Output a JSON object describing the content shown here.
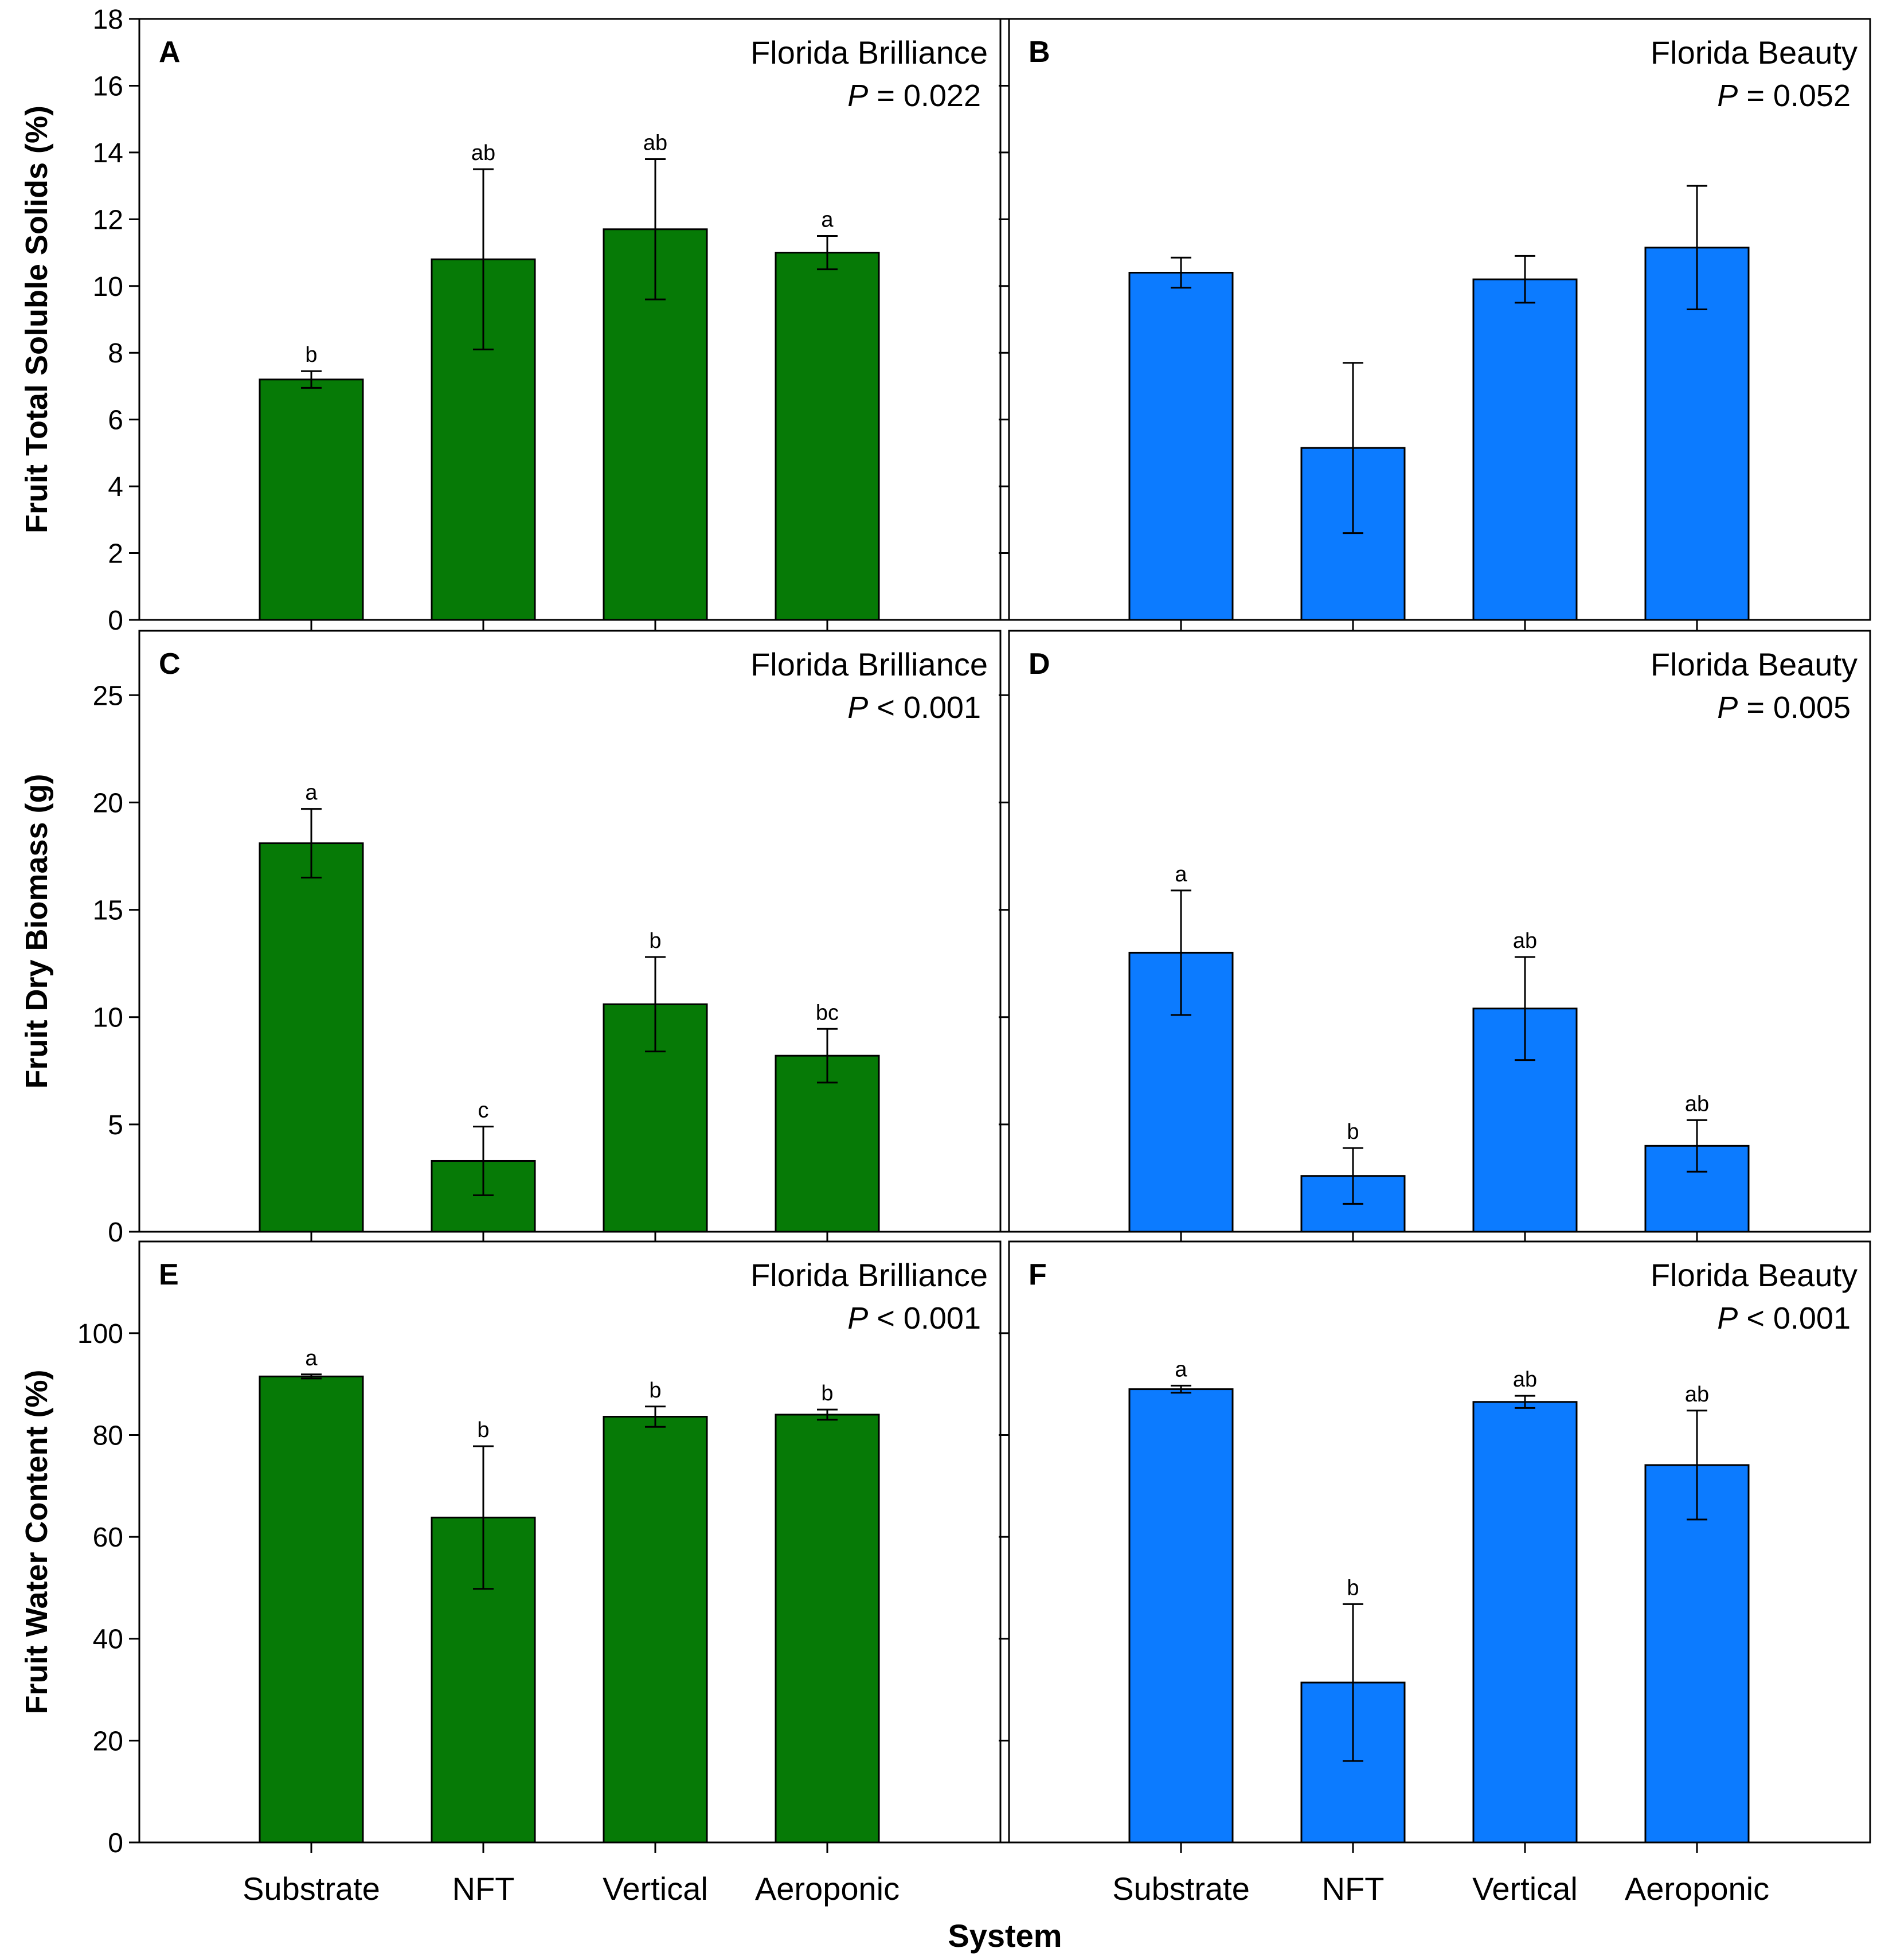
{
  "x_axis_label": "System",
  "chart_data": [
    {
      "type": "bar",
      "panel": "A",
      "cultivar": "Florida Brilliance",
      "p_prefix": "P",
      "p_text": " = 0.022",
      "ylabel": "Fruit Total Soluble Solids (%)",
      "categories": [
        "Substrate",
        "NFT",
        "Vertical",
        "Aeroponic"
      ],
      "values": [
        7.2,
        10.8,
        11.7,
        11.0
      ],
      "errors": [
        0.25,
        2.7,
        2.1,
        0.5
      ],
      "letters": [
        "b",
        "ab",
        "ab",
        "a"
      ],
      "ylim": [
        0,
        18
      ],
      "yticks": [
        0,
        2,
        4,
        6,
        8,
        10,
        12,
        14,
        16,
        18
      ],
      "color": "#067a06"
    },
    {
      "type": "bar",
      "panel": "B",
      "cultivar": "Florida Beauty",
      "p_prefix": "P",
      "p_text": " = 0.052",
      "categories": [
        "Substrate",
        "NFT",
        "Vertical",
        "Aeroponic"
      ],
      "values": [
        10.4,
        5.15,
        10.2,
        11.15
      ],
      "errors": [
        0.45,
        2.55,
        0.7,
        1.85
      ],
      "letters": [
        "",
        "",
        "",
        ""
      ],
      "ylim": [
        0,
        18
      ],
      "yticks": [
        0,
        2,
        4,
        6,
        8,
        10,
        12,
        14,
        16,
        18
      ],
      "color": "#0c7bff"
    },
    {
      "type": "bar",
      "panel": "C",
      "cultivar": "Florida Brilliance",
      "p_prefix": "P",
      "p_text": " < 0.001",
      "ylabel": "Fruit Dry Biomass (g)",
      "categories": [
        "Substrate",
        "NFT",
        "Vertical",
        "Aeroponic"
      ],
      "values": [
        18.1,
        3.3,
        10.6,
        8.2
      ],
      "errors": [
        1.6,
        1.6,
        2.2,
        1.25
      ],
      "letters": [
        "a",
        "c",
        "b",
        "bc"
      ],
      "ylim": [
        0,
        28
      ],
      "yticks": [
        0,
        5,
        10,
        15,
        20,
        25
      ],
      "color": "#067a06"
    },
    {
      "type": "bar",
      "panel": "D",
      "cultivar": "Florida Beauty",
      "p_prefix": "P",
      "p_text": " = 0.005",
      "categories": [
        "Substrate",
        "NFT",
        "Vertical",
        "Aeroponic"
      ],
      "values": [
        13.0,
        2.6,
        10.4,
        4.0
      ],
      "errors": [
        2.9,
        1.3,
        2.4,
        1.2
      ],
      "letters": [
        "a",
        "b",
        "ab",
        "ab"
      ],
      "ylim": [
        0,
        28
      ],
      "yticks": [
        0,
        5,
        10,
        15,
        20,
        25
      ],
      "color": "#0c7bff"
    },
    {
      "type": "bar",
      "panel": "E",
      "cultivar": "Florida Brilliance",
      "p_prefix": "P",
      "p_text": " < 0.001",
      "ylabel": "Fruit Water Content (%)",
      "categories": [
        "Substrate",
        "NFT",
        "Vertical",
        "Aeroponic"
      ],
      "values": [
        91.5,
        63.8,
        83.6,
        84.0
      ],
      "errors": [
        0.4,
        14.0,
        2.0,
        1.0
      ],
      "letters": [
        "a",
        "b",
        "b",
        "b"
      ],
      "ylim": [
        0,
        118
      ],
      "yticks": [
        0,
        20,
        40,
        60,
        80,
        100
      ],
      "color": "#067a06"
    },
    {
      "type": "bar",
      "panel": "F",
      "cultivar": "Florida Beauty",
      "p_prefix": "P",
      "p_text": " < 0.001",
      "categories": [
        "Substrate",
        "NFT",
        "Vertical",
        "Aeroponic"
      ],
      "values": [
        89.0,
        31.4,
        86.5,
        74.1
      ],
      "errors": [
        0.7,
        15.4,
        1.2,
        10.7
      ],
      "letters": [
        "a",
        "b",
        "ab",
        "ab"
      ],
      "ylim": [
        0,
        118
      ],
      "yticks": [
        0,
        20,
        40,
        60,
        80,
        100
      ],
      "color": "#0c7bff"
    }
  ]
}
